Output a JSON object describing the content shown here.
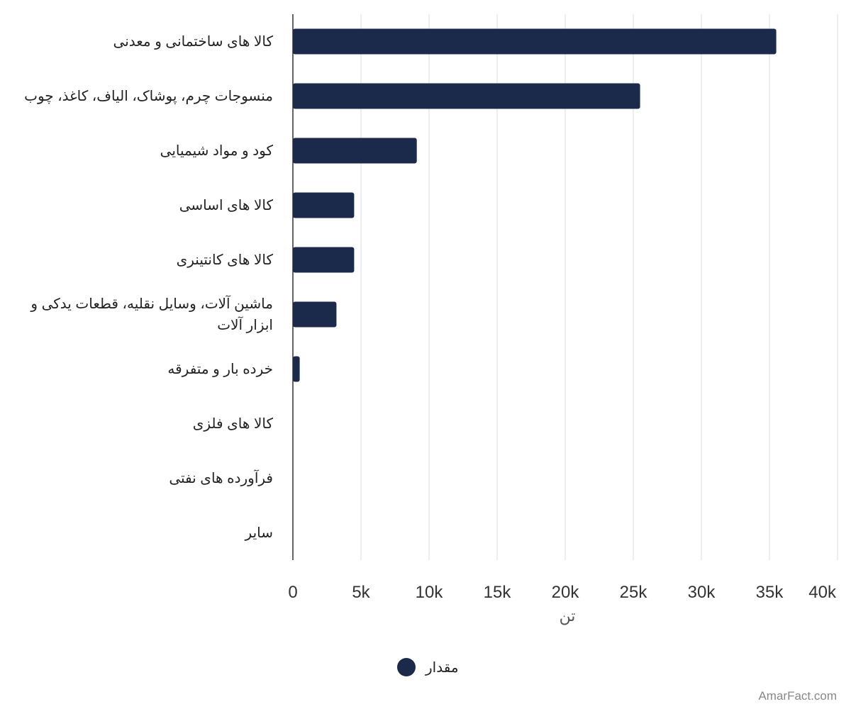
{
  "chart_data": {
    "type": "bar",
    "orientation": "horizontal",
    "categories": [
      "کالا های ساختمانی و معدنی",
      "منسوجات چرم، پوشاک، الیاف، کاغذ، چوب",
      "کود و مواد شیمیایی",
      "کالا های اساسی",
      "کالا های کانتینری",
      "ماشین آلات، وسایل نقلیه، قطعات یدکی و ابزار آلات",
      "خرده بار و متفرقه",
      "کالا های فلزی",
      "فرآورده های نفتی",
      "سایر"
    ],
    "series": [
      {
        "name": "مقدار",
        "values": [
          35500,
          25500,
          9100,
          4500,
          4500,
          3200,
          500,
          0,
          0,
          0
        ],
        "color": "#1b2a4b"
      }
    ],
    "xlabel": "تن",
    "xlim": [
      0,
      40000
    ],
    "xticks": [
      "0",
      "5k",
      "10k",
      "15k",
      "20k",
      "25k",
      "30k",
      "35k",
      "40k"
    ],
    "grid": true,
    "legend_position": "bottom-center"
  },
  "legend": {
    "label": "مقدار",
    "color": "#1b2a4b"
  },
  "credit": "AmarFact.com",
  "colors": {
    "bar": "#1b2a4b",
    "grid": "#dddddd",
    "axis": "#333333"
  }
}
